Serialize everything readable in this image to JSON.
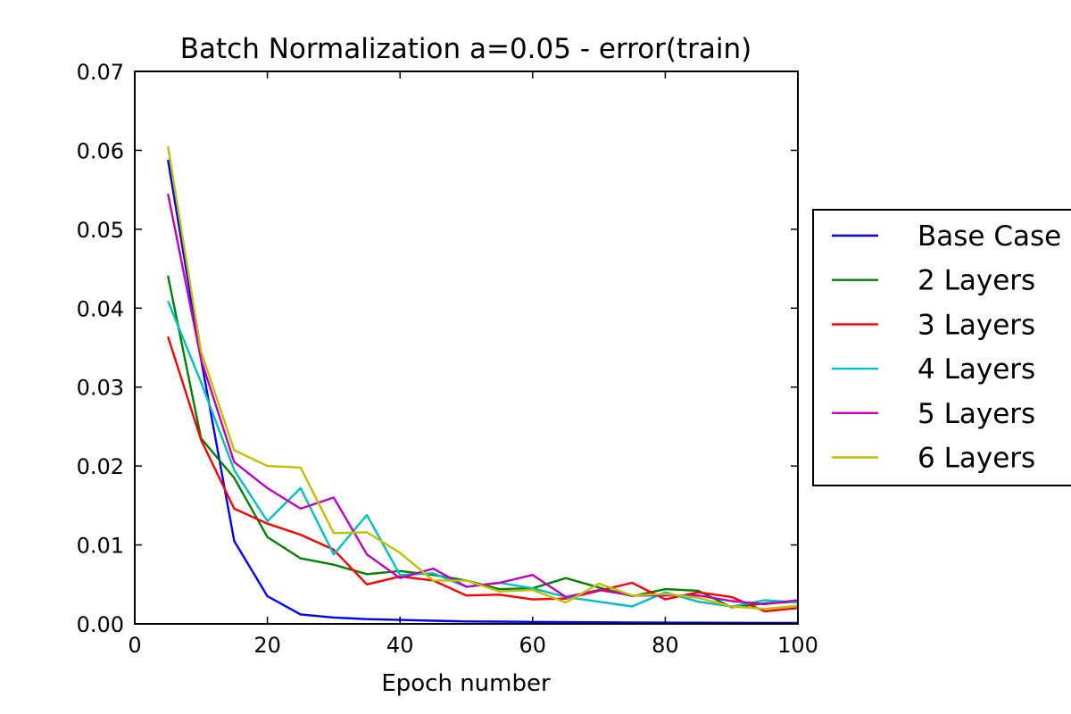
{
  "chart_data": {
    "type": "line",
    "title": "Batch Normalization a=0.05 - error(train)",
    "xlabel": "Epoch number",
    "ylabel": "",
    "xlim": [
      0,
      100
    ],
    "ylim": [
      0,
      0.07
    ],
    "x_ticks": [
      "0",
      "20",
      "40",
      "60",
      "80",
      "100"
    ],
    "y_ticks": [
      "0.00",
      "0.01",
      "0.02",
      "0.03",
      "0.04",
      "0.05",
      "0.06",
      "0.07"
    ],
    "grid": false,
    "legend_position": "outside-right",
    "x": [
      5,
      10,
      15,
      20,
      25,
      30,
      35,
      40,
      45,
      50,
      55,
      60,
      65,
      70,
      75,
      80,
      85,
      90,
      95,
      100
    ],
    "series": [
      {
        "name": "Base Case",
        "color": "#0000ff",
        "values": [
          0.0588,
          0.0335,
          0.0105,
          0.0035,
          0.0012,
          0.0008,
          0.0006,
          0.0005,
          0.0004,
          0.0003,
          0.00028,
          0.00025,
          0.00022,
          0.0002,
          0.00018,
          0.00016,
          0.00015,
          0.00014,
          0.00012,
          0.00011
        ]
      },
      {
        "name": "2 Layers",
        "color": "#008000",
        "values": [
          0.0441,
          0.0235,
          0.0185,
          0.011,
          0.0083,
          0.0075,
          0.0063,
          0.0067,
          0.0062,
          0.0055,
          0.0044,
          0.0045,
          0.0058,
          0.0046,
          0.0035,
          0.0044,
          0.0042,
          0.0021,
          0.0026,
          0.0028
        ]
      },
      {
        "name": "3 Layers",
        "color": "#ff0000",
        "values": [
          0.0364,
          0.0233,
          0.0146,
          0.0127,
          0.0113,
          0.0094,
          0.005,
          0.006,
          0.0055,
          0.0036,
          0.0037,
          0.0031,
          0.0032,
          0.0042,
          0.0052,
          0.0031,
          0.004,
          0.0034,
          0.0016,
          0.002
        ]
      },
      {
        "name": "4 Layers",
        "color": "#00bfbf",
        "values": [
          0.0409,
          0.0306,
          0.0195,
          0.013,
          0.0172,
          0.0088,
          0.0138,
          0.0062,
          0.0064,
          0.0047,
          0.0052,
          0.0045,
          0.0034,
          0.0028,
          0.0022,
          0.004,
          0.0028,
          0.0022,
          0.003,
          0.0027
        ]
      },
      {
        "name": "5 Layers",
        "color": "#bf00bf",
        "values": [
          0.0545,
          0.0335,
          0.0205,
          0.0172,
          0.0146,
          0.016,
          0.0088,
          0.0058,
          0.007,
          0.0047,
          0.0052,
          0.0062,
          0.0034,
          0.0043,
          0.0036,
          0.0036,
          0.0036,
          0.0029,
          0.0025,
          0.003
        ]
      },
      {
        "name": "6 Layers",
        "color": "#bfbf00",
        "values": [
          0.0605,
          0.0345,
          0.022,
          0.02,
          0.0198,
          0.0115,
          0.0116,
          0.009,
          0.0055,
          0.0055,
          0.0041,
          0.0043,
          0.0027,
          0.0051,
          0.0036,
          0.0038,
          0.0033,
          0.0022,
          0.0019,
          0.0023
        ]
      }
    ]
  }
}
